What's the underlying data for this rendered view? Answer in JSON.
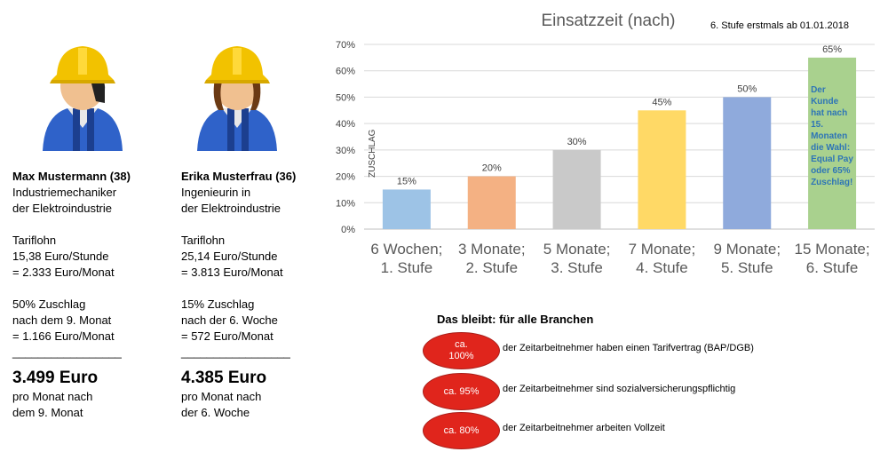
{
  "workers": [
    {
      "name": "Max Mustermann (38)",
      "job_lines": [
        "Industriemechaniker",
        "der Elektroindustrie"
      ],
      "tarif_lines": [
        "Tariflohn",
        "15,38 Euro/Stunde",
        "= 2.333 Euro/Monat"
      ],
      "zuschlag_lines": [
        "50% Zuschlag",
        "nach dem 9. Monat",
        "=  1.166 Euro/Monat"
      ],
      "rule": "_________________",
      "total": "3.499 Euro",
      "total_lines": [
        "pro Monat nach",
        "dem 9. Monat"
      ]
    },
    {
      "name": "Erika Musterfrau (36)",
      "job_lines": [
        "Ingenieurin in",
        "der Elektroindustrie"
      ],
      "tarif_lines": [
        "Tariflohn",
        "25,14 Euro/Stunde",
        "= 3.813 Euro/Monat"
      ],
      "zuschlag_lines": [
        "15% Zuschlag",
        "nach der 6. Woche",
        "=   572 Euro/Monat"
      ],
      "rule": "_________________",
      "total": "4.385 Euro",
      "total_lines": [
        "pro Monat nach",
        "der 6. Woche"
      ]
    }
  ],
  "chart_note": "6. Stufe erstmals ab 01.01.2018",
  "chart_data": {
    "type": "bar",
    "title": "Einsatzzeit (nach)",
    "xlabel": "",
    "ylabel": "ZUSCHLAG",
    "ylim": [
      0,
      70
    ],
    "y_ticks": [
      "0%",
      "10%",
      "20%",
      "30%",
      "40%",
      "50%",
      "60%",
      "70%"
    ],
    "grid": true,
    "categories": [
      [
        "6 Wochen;",
        "1. Stufe"
      ],
      [
        "3 Monate;",
        "2. Stufe"
      ],
      [
        "5 Monate;",
        "3. Stufe"
      ],
      [
        "7 Monate;",
        "4. Stufe"
      ],
      [
        "9 Monate;",
        "5. Stufe"
      ],
      [
        "15 Monate;",
        "6. Stufe"
      ]
    ],
    "values": [
      15,
      20,
      30,
      45,
      50,
      65
    ],
    "data_labels": [
      "15%",
      "20%",
      "30%",
      "45%",
      "50%",
      "65%"
    ],
    "colors": [
      "#9dc3e6",
      "#f4b183",
      "#c9c9c9",
      "#ffd966",
      "#8faadc",
      "#a9d18e"
    ],
    "annotation": {
      "bar": 5,
      "color": "#2e75b6",
      "lines": [
        "Der",
        "Kunde",
        "hat nach",
        "15.",
        "Monaten",
        "die Wahl:",
        "Equal Pay",
        "oder 65%",
        "Zuschlag!"
      ]
    }
  },
  "bleibt": {
    "title": "Das bleibt: für alle Branchen",
    "badge_color": "#e0251c",
    "items": [
      {
        "badge_lines": [
          "ca.",
          "100%"
        ],
        "text": "der Zeitarbeitnehmer haben einen Tarifvertrag (BAP/DGB)"
      },
      {
        "badge_lines": [
          "ca. 95%"
        ],
        "text": "der Zeitarbeitnehmer sind sozialversicherungspflichtig"
      },
      {
        "badge_lines": [
          "ca. 80%"
        ],
        "text": "der Zeitarbeitnehmer arbeiten Vollzeit"
      }
    ]
  }
}
